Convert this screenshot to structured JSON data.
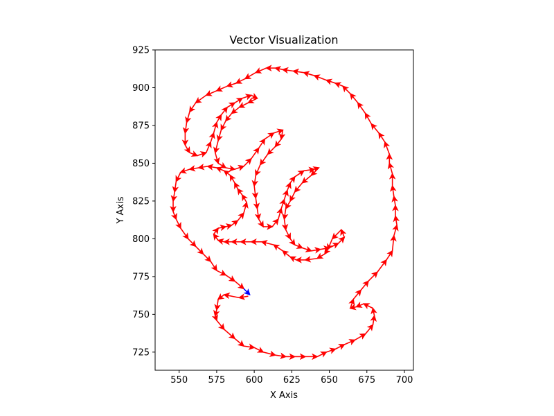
{
  "chart_data": {
    "type": "quiver",
    "title": "Vector Visualization",
    "xlabel": "X Axis",
    "ylabel": "Y Axis",
    "xlim": [
      534,
      706
    ],
    "ylim": [
      713,
      925
    ],
    "xticks": [
      550,
      575,
      600,
      625,
      650,
      675,
      700
    ],
    "yticks": [
      725,
      750,
      775,
      800,
      825,
      850,
      875,
      900,
      925
    ],
    "grid": false,
    "colors": {
      "arrows": "#ff0000",
      "last_arrow": "#0000ff"
    },
    "path": [
      [
        596,
        762
      ],
      [
        590,
        761
      ],
      [
        580,
        763
      ],
      [
        576,
        760
      ],
      [
        575,
        753
      ],
      [
        574,
        749
      ],
      [
        575,
        746
      ],
      [
        580,
        740
      ],
      [
        587,
        734
      ],
      [
        593,
        729
      ],
      [
        600,
        728
      ],
      [
        606,
        725
      ],
      [
        614,
        723
      ],
      [
        621,
        722
      ],
      [
        627,
        722
      ],
      [
        634,
        722
      ],
      [
        642,
        722
      ],
      [
        648,
        725
      ],
      [
        654,
        727
      ],
      [
        660,
        730
      ],
      [
        667,
        733
      ],
      [
        674,
        737
      ],
      [
        679,
        743
      ],
      [
        680,
        749
      ],
      [
        679,
        754
      ],
      [
        673,
        757
      ],
      [
        668,
        755
      ],
      [
        664,
        754
      ],
      [
        666,
        760
      ],
      [
        671,
        766
      ],
      [
        676,
        772
      ],
      [
        682,
        778
      ],
      [
        688,
        786
      ],
      [
        692,
        792
      ],
      [
        693,
        802
      ],
      [
        695,
        809
      ],
      [
        694,
        815
      ],
      [
        694,
        822
      ],
      [
        693,
        828
      ],
      [
        692,
        835
      ],
      [
        692,
        843
      ],
      [
        690,
        850
      ],
      [
        690,
        856
      ],
      [
        687,
        864
      ],
      [
        683,
        870
      ],
      [
        678,
        876
      ],
      [
        674,
        883
      ],
      [
        669,
        890
      ],
      [
        664,
        896
      ],
      [
        659,
        901
      ],
      [
        654,
        903
      ],
      [
        648,
        905
      ],
      [
        640,
        908
      ],
      [
        633,
        910
      ],
      [
        626,
        911
      ],
      [
        619,
        912
      ],
      [
        614,
        913
      ],
      [
        608,
        913
      ],
      [
        601,
        910
      ],
      [
        594,
        906
      ],
      [
        588,
        903
      ],
      [
        582,
        901
      ],
      [
        575,
        898
      ],
      [
        568,
        895
      ],
      [
        561,
        890
      ],
      [
        557,
        884
      ],
      [
        555,
        877
      ],
      [
        554,
        870
      ],
      [
        554,
        862
      ],
      [
        557,
        857
      ],
      [
        562,
        855
      ],
      [
        568,
        857
      ],
      [
        571,
        864
      ],
      [
        573,
        870
      ],
      [
        575,
        877
      ],
      [
        578,
        882
      ],
      [
        582,
        887
      ],
      [
        587,
        890
      ],
      [
        592,
        893
      ],
      [
        598,
        895
      ],
      [
        602,
        893
      ],
      [
        596,
        890
      ],
      [
        590,
        887
      ],
      [
        585,
        883
      ],
      [
        581,
        878
      ],
      [
        578,
        872
      ],
      [
        576,
        865
      ],
      [
        574,
        857
      ],
      [
        576,
        850
      ],
      [
        581,
        847
      ],
      [
        587,
        846
      ],
      [
        593,
        848
      ],
      [
        598,
        853
      ],
      [
        603,
        860
      ],
      [
        607,
        866
      ],
      [
        613,
        870
      ],
      [
        619,
        872
      ],
      [
        618,
        866
      ],
      [
        614,
        861
      ],
      [
        609,
        856
      ],
      [
        604,
        849
      ],
      [
        601,
        842
      ],
      [
        600,
        835
      ],
      [
        601,
        827
      ],
      [
        602,
        820
      ],
      [
        603,
        813
      ],
      [
        606,
        808
      ],
      [
        612,
        808
      ],
      [
        616,
        813
      ],
      [
        618,
        820
      ],
      [
        620,
        826
      ],
      [
        622,
        832
      ],
      [
        624,
        837
      ],
      [
        627,
        841
      ],
      [
        633,
        845
      ],
      [
        640,
        846
      ],
      [
        643,
        847
      ],
      [
        638,
        842
      ],
      [
        632,
        837
      ],
      [
        627,
        831
      ],
      [
        624,
        825
      ],
      [
        621,
        820
      ],
      [
        620,
        813
      ],
      [
        621,
        806
      ],
      [
        624,
        800
      ],
      [
        627,
        796
      ],
      [
        632,
        794
      ],
      [
        638,
        792
      ],
      [
        644,
        793
      ],
      [
        650,
        794
      ],
      [
        656,
        797
      ],
      [
        660,
        801
      ],
      [
        658,
        806
      ],
      [
        652,
        800
      ],
      [
        649,
        793
      ],
      [
        647,
        790
      ],
      [
        642,
        787
      ],
      [
        634,
        786
      ],
      [
        628,
        786
      ],
      [
        624,
        788
      ],
      [
        619,
        792
      ],
      [
        613,
        796
      ],
      [
        605,
        798
      ],
      [
        598,
        798
      ],
      [
        591,
        798
      ],
      [
        585,
        798
      ],
      [
        580,
        798
      ],
      [
        576,
        799
      ],
      [
        573,
        803
      ],
      [
        576,
        807
      ],
      [
        581,
        808
      ],
      [
        585,
        809
      ],
      [
        589,
        812
      ],
      [
        593,
        817
      ],
      [
        595,
        824
      ],
      [
        592,
        829
      ],
      [
        589,
        833
      ],
      [
        587,
        837
      ],
      [
        584,
        842
      ],
      [
        580,
        845
      ],
      [
        575,
        847
      ],
      [
        569,
        848
      ],
      [
        563,
        847
      ],
      [
        557,
        846
      ],
      [
        551,
        844
      ],
      [
        548,
        838
      ],
      [
        547,
        831
      ],
      [
        546,
        825
      ],
      [
        546,
        818
      ],
      [
        548,
        813
      ],
      [
        551,
        807
      ],
      [
        556,
        800
      ],
      [
        561,
        795
      ],
      [
        566,
        790
      ],
      [
        571,
        785
      ],
      [
        575,
        779
      ],
      [
        581,
        776
      ],
      [
        587,
        772
      ],
      [
        593,
        767
      ],
      [
        597,
        763
      ]
    ]
  }
}
